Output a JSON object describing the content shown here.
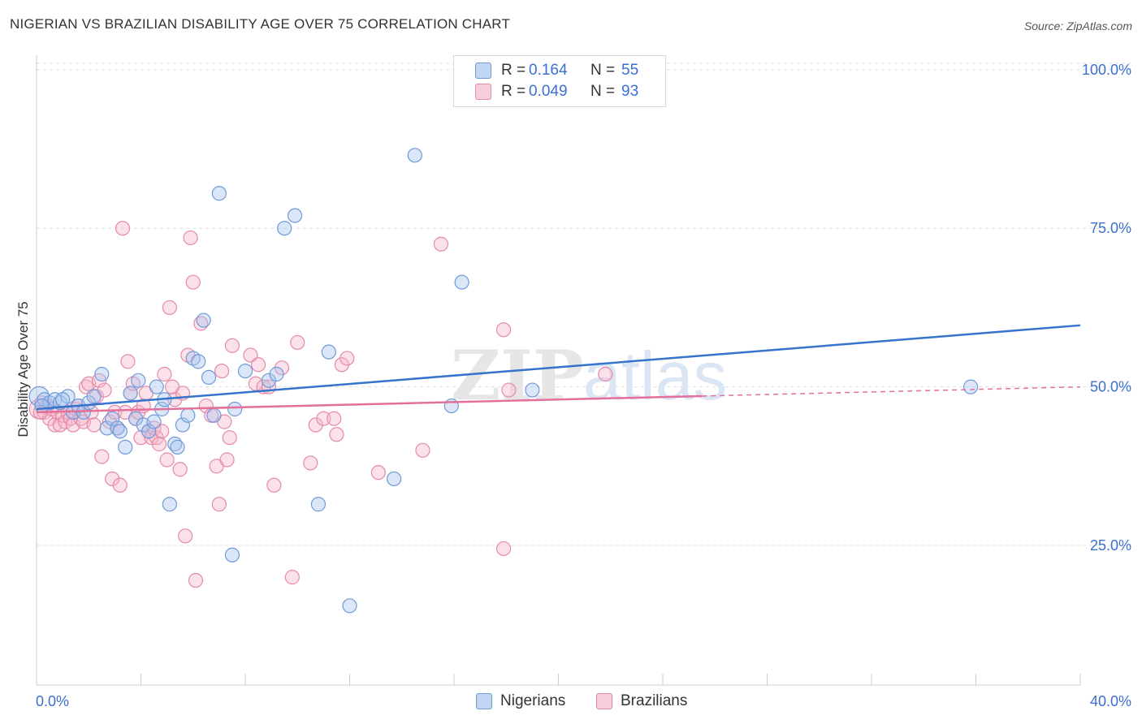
{
  "title": "NIGERIAN VS BRAZILIAN DISABILITY AGE OVER 75 CORRELATION CHART",
  "source": "Source: ZipAtlas.com",
  "watermark": {
    "part1": "ZIP",
    "part2": "atlas"
  },
  "colors": {
    "nigerian_fill": "#a9c6ef",
    "nigerian_stroke": "#6f9ad8",
    "nigerian_line": "#3573cc",
    "brazilian_fill": "#f5b8cb",
    "brazilian_stroke": "#e58aa8",
    "brazilian_line": "#e2709b",
    "grid": "#dddddd",
    "tick_label": "#3b6fd0"
  },
  "legend": {
    "rows": [
      {
        "r_label": "R =",
        "r_value": "0.164",
        "n_label": "N =",
        "n_value": "55"
      },
      {
        "r_label": "R =",
        "r_value": "0.049",
        "n_label": "N =",
        "n_value": "93"
      }
    ],
    "bottom": [
      "Nigerians",
      "Brazilians"
    ]
  },
  "chart_data": {
    "type": "scatter",
    "title": "NIGERIAN VS BRAZILIAN DISABILITY AGE OVER 75 CORRELATION CHART",
    "xlabel": "",
    "ylabel": "Disability Age Over 75",
    "xlim": [
      0,
      40
    ],
    "ylim": [
      3,
      101
    ],
    "x_tick_labels": [
      "0.0%",
      "40.0%"
    ],
    "y_ticks": [
      25,
      50,
      75,
      100
    ],
    "y_tick_labels": [
      "25.0%",
      "50.0%",
      "75.0%",
      "100.0%"
    ],
    "grid": true,
    "legend_position": "top-center",
    "series": [
      {
        "name": "Nigerians",
        "R": 0.164,
        "N": 55,
        "trend": {
          "x": [
            0,
            40
          ],
          "y": [
            46.5,
            59.7
          ],
          "dashed_from": null
        },
        "points": [
          [
            0.1,
            48.5
          ],
          [
            0.3,
            48
          ],
          [
            0.5,
            47.5
          ],
          [
            0.7,
            48
          ],
          [
            0.9,
            47.5
          ],
          [
            1.2,
            48.5
          ],
          [
            1.4,
            46
          ],
          [
            1.6,
            47
          ],
          [
            1.8,
            46
          ],
          [
            2.0,
            47.5
          ],
          [
            2.2,
            48.5
          ],
          [
            2.5,
            52
          ],
          [
            2.7,
            43.5
          ],
          [
            2.9,
            45
          ],
          [
            3.1,
            43.5
          ],
          [
            3.2,
            43
          ],
          [
            3.4,
            40.5
          ],
          [
            3.6,
            49
          ],
          [
            3.8,
            45
          ],
          [
            3.9,
            51
          ],
          [
            4.1,
            44
          ],
          [
            4.3,
            43
          ],
          [
            4.5,
            44.5
          ],
          [
            4.6,
            50
          ],
          [
            4.8,
            46.5
          ],
          [
            4.9,
            48
          ],
          [
            5.1,
            31.5
          ],
          [
            5.3,
            41
          ],
          [
            5.4,
            40.5
          ],
          [
            5.6,
            44
          ],
          [
            5.8,
            45.5
          ],
          [
            6.0,
            54.5
          ],
          [
            6.2,
            54
          ],
          [
            6.4,
            60.5
          ],
          [
            6.6,
            51.5
          ],
          [
            6.8,
            45.5
          ],
          [
            7.0,
            80.5
          ],
          [
            7.5,
            23.5
          ],
          [
            7.6,
            46.5
          ],
          [
            8.0,
            52.5
          ],
          [
            8.9,
            51
          ],
          [
            9.2,
            52
          ],
          [
            9.5,
            75
          ],
          [
            9.9,
            77
          ],
          [
            10.8,
            31.5
          ],
          [
            11.2,
            55.5
          ],
          [
            12.0,
            15.5
          ],
          [
            13.7,
            35.5
          ],
          [
            14.5,
            86.5
          ],
          [
            15.9,
            47
          ],
          [
            16.3,
            66.5
          ],
          [
            19.0,
            49.5
          ],
          [
            35.8,
            50
          ],
          [
            0.2,
            47
          ],
          [
            1.0,
            48
          ]
        ]
      },
      {
        "name": "Brazilians",
        "R": 0.049,
        "N": 93,
        "trend": {
          "x": [
            0,
            40
          ],
          "y": [
            46.0,
            50.0
          ],
          "dashed_from": 25.5
        },
        "points": [
          [
            0.1,
            46.5
          ],
          [
            0.2,
            47.5
          ],
          [
            0.3,
            46
          ],
          [
            0.4,
            47
          ],
          [
            0.5,
            45
          ],
          [
            0.6,
            46.5
          ],
          [
            0.7,
            44
          ],
          [
            0.8,
            46
          ],
          [
            0.9,
            44
          ],
          [
            1.0,
            45.5
          ],
          [
            1.1,
            44.5
          ],
          [
            1.2,
            46
          ],
          [
            1.3,
            45
          ],
          [
            1.4,
            44
          ],
          [
            1.5,
            46.5
          ],
          [
            1.6,
            47
          ],
          [
            1.7,
            45
          ],
          [
            1.8,
            44.5
          ],
          [
            1.9,
            50
          ],
          [
            2.0,
            50.5
          ],
          [
            2.1,
            46
          ],
          [
            2.2,
            44
          ],
          [
            2.3,
            48.5
          ],
          [
            2.4,
            51
          ],
          [
            2.5,
            39
          ],
          [
            2.6,
            49.5
          ],
          [
            2.8,
            44.5
          ],
          [
            2.9,
            35.5
          ],
          [
            3.0,
            46
          ],
          [
            3.1,
            43.5
          ],
          [
            3.2,
            34.5
          ],
          [
            3.3,
            75
          ],
          [
            3.4,
            46
          ],
          [
            3.5,
            54
          ],
          [
            3.6,
            49
          ],
          [
            3.7,
            50.5
          ],
          [
            3.8,
            45
          ],
          [
            3.9,
            46
          ],
          [
            4.0,
            42
          ],
          [
            4.1,
            47
          ],
          [
            4.2,
            49
          ],
          [
            4.3,
            43
          ],
          [
            4.4,
            42
          ],
          [
            4.5,
            43.5
          ],
          [
            4.6,
            42
          ],
          [
            4.7,
            41
          ],
          [
            4.8,
            43
          ],
          [
            4.9,
            52
          ],
          [
            5.0,
            38.5
          ],
          [
            5.1,
            62.5
          ],
          [
            5.2,
            50
          ],
          [
            5.3,
            48
          ],
          [
            5.5,
            37
          ],
          [
            5.6,
            49
          ],
          [
            5.7,
            26.5
          ],
          [
            5.8,
            55
          ],
          [
            5.9,
            73.5
          ],
          [
            6.0,
            66.5
          ],
          [
            6.1,
            19.5
          ],
          [
            6.3,
            60
          ],
          [
            6.5,
            47
          ],
          [
            6.7,
            45.5
          ],
          [
            6.9,
            37.5
          ],
          [
            7.0,
            31.5
          ],
          [
            7.1,
            52.5
          ],
          [
            7.2,
            44.5
          ],
          [
            7.3,
            38.5
          ],
          [
            7.4,
            42
          ],
          [
            7.5,
            56.5
          ],
          [
            8.2,
            55
          ],
          [
            8.4,
            50.5
          ],
          [
            8.5,
            53.5
          ],
          [
            8.7,
            50
          ],
          [
            8.9,
            50
          ],
          [
            9.1,
            34.5
          ],
          [
            9.4,
            53
          ],
          [
            9.8,
            20
          ],
          [
            10.0,
            57
          ],
          [
            10.5,
            38
          ],
          [
            10.7,
            44
          ],
          [
            11.0,
            45
          ],
          [
            11.5,
            42.5
          ],
          [
            11.7,
            53.5
          ],
          [
            11.9,
            54.5
          ],
          [
            13.1,
            36.5
          ],
          [
            14.8,
            40
          ],
          [
            15.5,
            72.5
          ],
          [
            17.9,
            59
          ],
          [
            17.9,
            24.5
          ],
          [
            18.1,
            49.5
          ],
          [
            21.8,
            52
          ],
          [
            0.15,
            46
          ],
          [
            11.4,
            45
          ]
        ]
      }
    ]
  }
}
